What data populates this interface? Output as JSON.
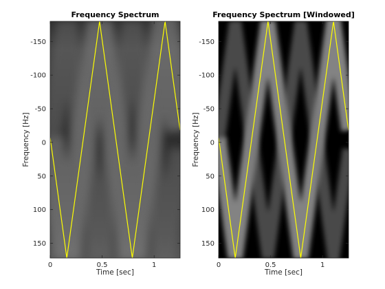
{
  "chart_data": [
    {
      "type": "heatmap",
      "title": "Frequency Spectrum",
      "xlabel": "Time [sec]",
      "ylabel": "Frequency [Hz]",
      "xlim": [
        0,
        1.25
      ],
      "ylim": [
        -180,
        172
      ],
      "y_reversed": true,
      "xticks": [
        0,
        0.5,
        1
      ],
      "xtick_labels": [
        "0",
        "0.5",
        "1"
      ],
      "yticks": [
        -150,
        -100,
        -50,
        0,
        50,
        100,
        150
      ],
      "ytick_labels": [
        "-150",
        "-100",
        "-50",
        "0",
        "50",
        "100",
        "150"
      ],
      "colormap": "gray",
      "windowed": false,
      "overlay": {
        "name": "instantaneous frequency",
        "type": "line",
        "color": "#ffff00",
        "shape": "triangle",
        "period_sec": 0.63,
        "min_hz": -180,
        "max_hz": 172,
        "phase_sec": 0.16
      }
    },
    {
      "type": "heatmap",
      "title": "Frequency Spectrum [Windowed]",
      "xlabel": "Time [sec]",
      "ylabel": "Frequency [Hz]",
      "xlim": [
        0,
        1.25
      ],
      "ylim": [
        -180,
        172
      ],
      "y_reversed": true,
      "xticks": [
        0,
        0.5,
        1
      ],
      "xtick_labels": [
        "0",
        "0.5",
        "1"
      ],
      "yticks": [
        -150,
        -100,
        -50,
        0,
        50,
        100,
        150
      ],
      "ytick_labels": [
        "-150",
        "-100",
        "-50",
        "0",
        "50",
        "100",
        "150"
      ],
      "colormap": "gray",
      "windowed": true,
      "overlay": {
        "name": "instantaneous frequency",
        "type": "line",
        "color": "#ffff00",
        "shape": "triangle",
        "period_sec": 0.63,
        "min_hz": -180,
        "max_hz": 172,
        "phase_sec": 0.16
      }
    }
  ]
}
